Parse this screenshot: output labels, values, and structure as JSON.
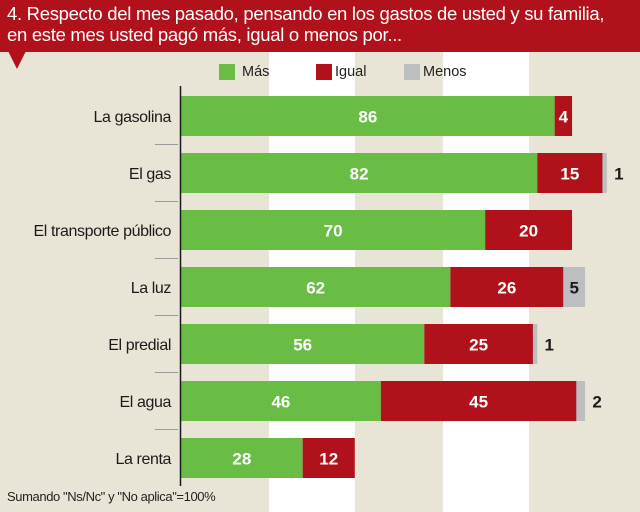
{
  "header": {
    "line1": "4. Respecto del mes pasado, pensando en los gastos de usted y su familia,",
    "line2": "en este mes usted pagó más, igual o menos por..."
  },
  "legend": [
    {
      "label": "Más",
      "color": "#69bd45"
    },
    {
      "label": "Igual",
      "color": "#b1111a"
    },
    {
      "label": "Menos",
      "color": "#bcbec0"
    }
  ],
  "footnote": "Sumando \"Ns/Nc\" y \"No aplica\"=100%",
  "chart_data": {
    "type": "bar",
    "orientation": "horizontal",
    "stacked": true,
    "title": "4. Respecto del mes pasado, pensando en los gastos de usted y su familia, en este mes usted pagó más, igual o menos por...",
    "xlabel": "",
    "ylabel": "",
    "xlim": [
      0,
      100
    ],
    "legend_position": "top",
    "categories": [
      "La gasolina",
      "El gas",
      "El transporte público",
      "La luz",
      "El predial",
      "El agua",
      "La renta"
    ],
    "series": [
      {
        "name": "Más",
        "color": "#69bd45",
        "values": [
          86,
          82,
          70,
          62,
          56,
          46,
          28
        ]
      },
      {
        "name": "Igual",
        "color": "#b1111a",
        "values": [
          4,
          15,
          20,
          26,
          25,
          45,
          12
        ]
      },
      {
        "name": "Menos",
        "color": "#bcbec0",
        "values": [
          0,
          1,
          0,
          5,
          1,
          2,
          0
        ]
      }
    ],
    "annotation": "Sumando \"Ns/Nc\" y \"No aplica\"=100%"
  }
}
